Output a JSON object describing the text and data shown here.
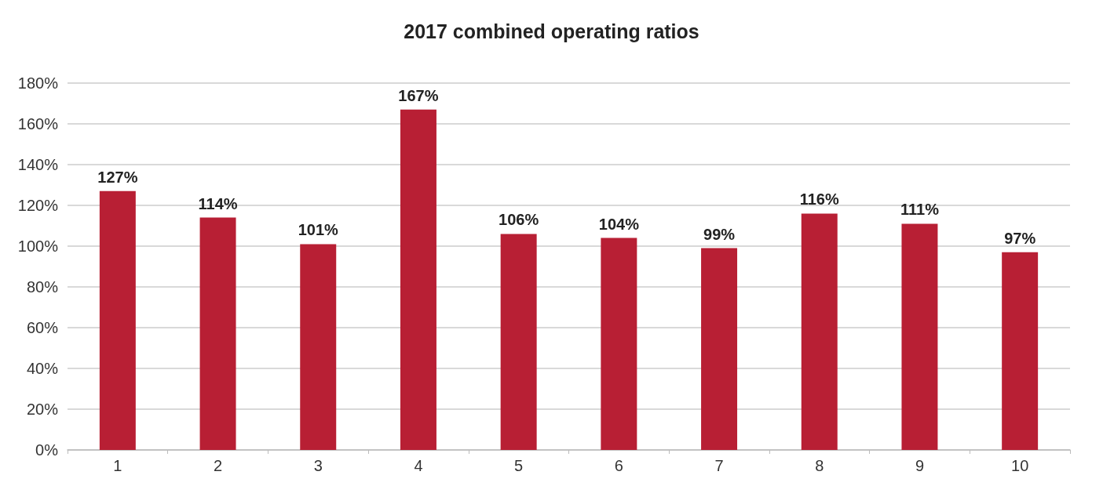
{
  "chart_data": {
    "type": "bar",
    "title": "2017 combined operating ratios",
    "categories": [
      "1",
      "2",
      "3",
      "4",
      "5",
      "6",
      "7",
      "8",
      "9",
      "10"
    ],
    "values": [
      127,
      114,
      101,
      167,
      106,
      104,
      99,
      116,
      111,
      97
    ],
    "value_labels": [
      "127%",
      "114%",
      "101%",
      "167%",
      "106%",
      "104%",
      "99%",
      "116%",
      "111%",
      "97%"
    ],
    "color": "#b81f34",
    "ylim": [
      0,
      180
    ],
    "yticks": [
      {
        "value": 0,
        "label": "0%"
      },
      {
        "value": 20,
        "label": "20%"
      },
      {
        "value": 40,
        "label": "40%"
      },
      {
        "value": 60,
        "label": "60%"
      },
      {
        "value": 80,
        "label": "80%"
      },
      {
        "value": 100,
        "label": "100%"
      },
      {
        "value": 120,
        "label": "120%"
      },
      {
        "value": 140,
        "label": "140%"
      },
      {
        "value": 160,
        "label": "160%"
      },
      {
        "value": 180,
        "label": "180%"
      }
    ],
    "grid": "y"
  }
}
